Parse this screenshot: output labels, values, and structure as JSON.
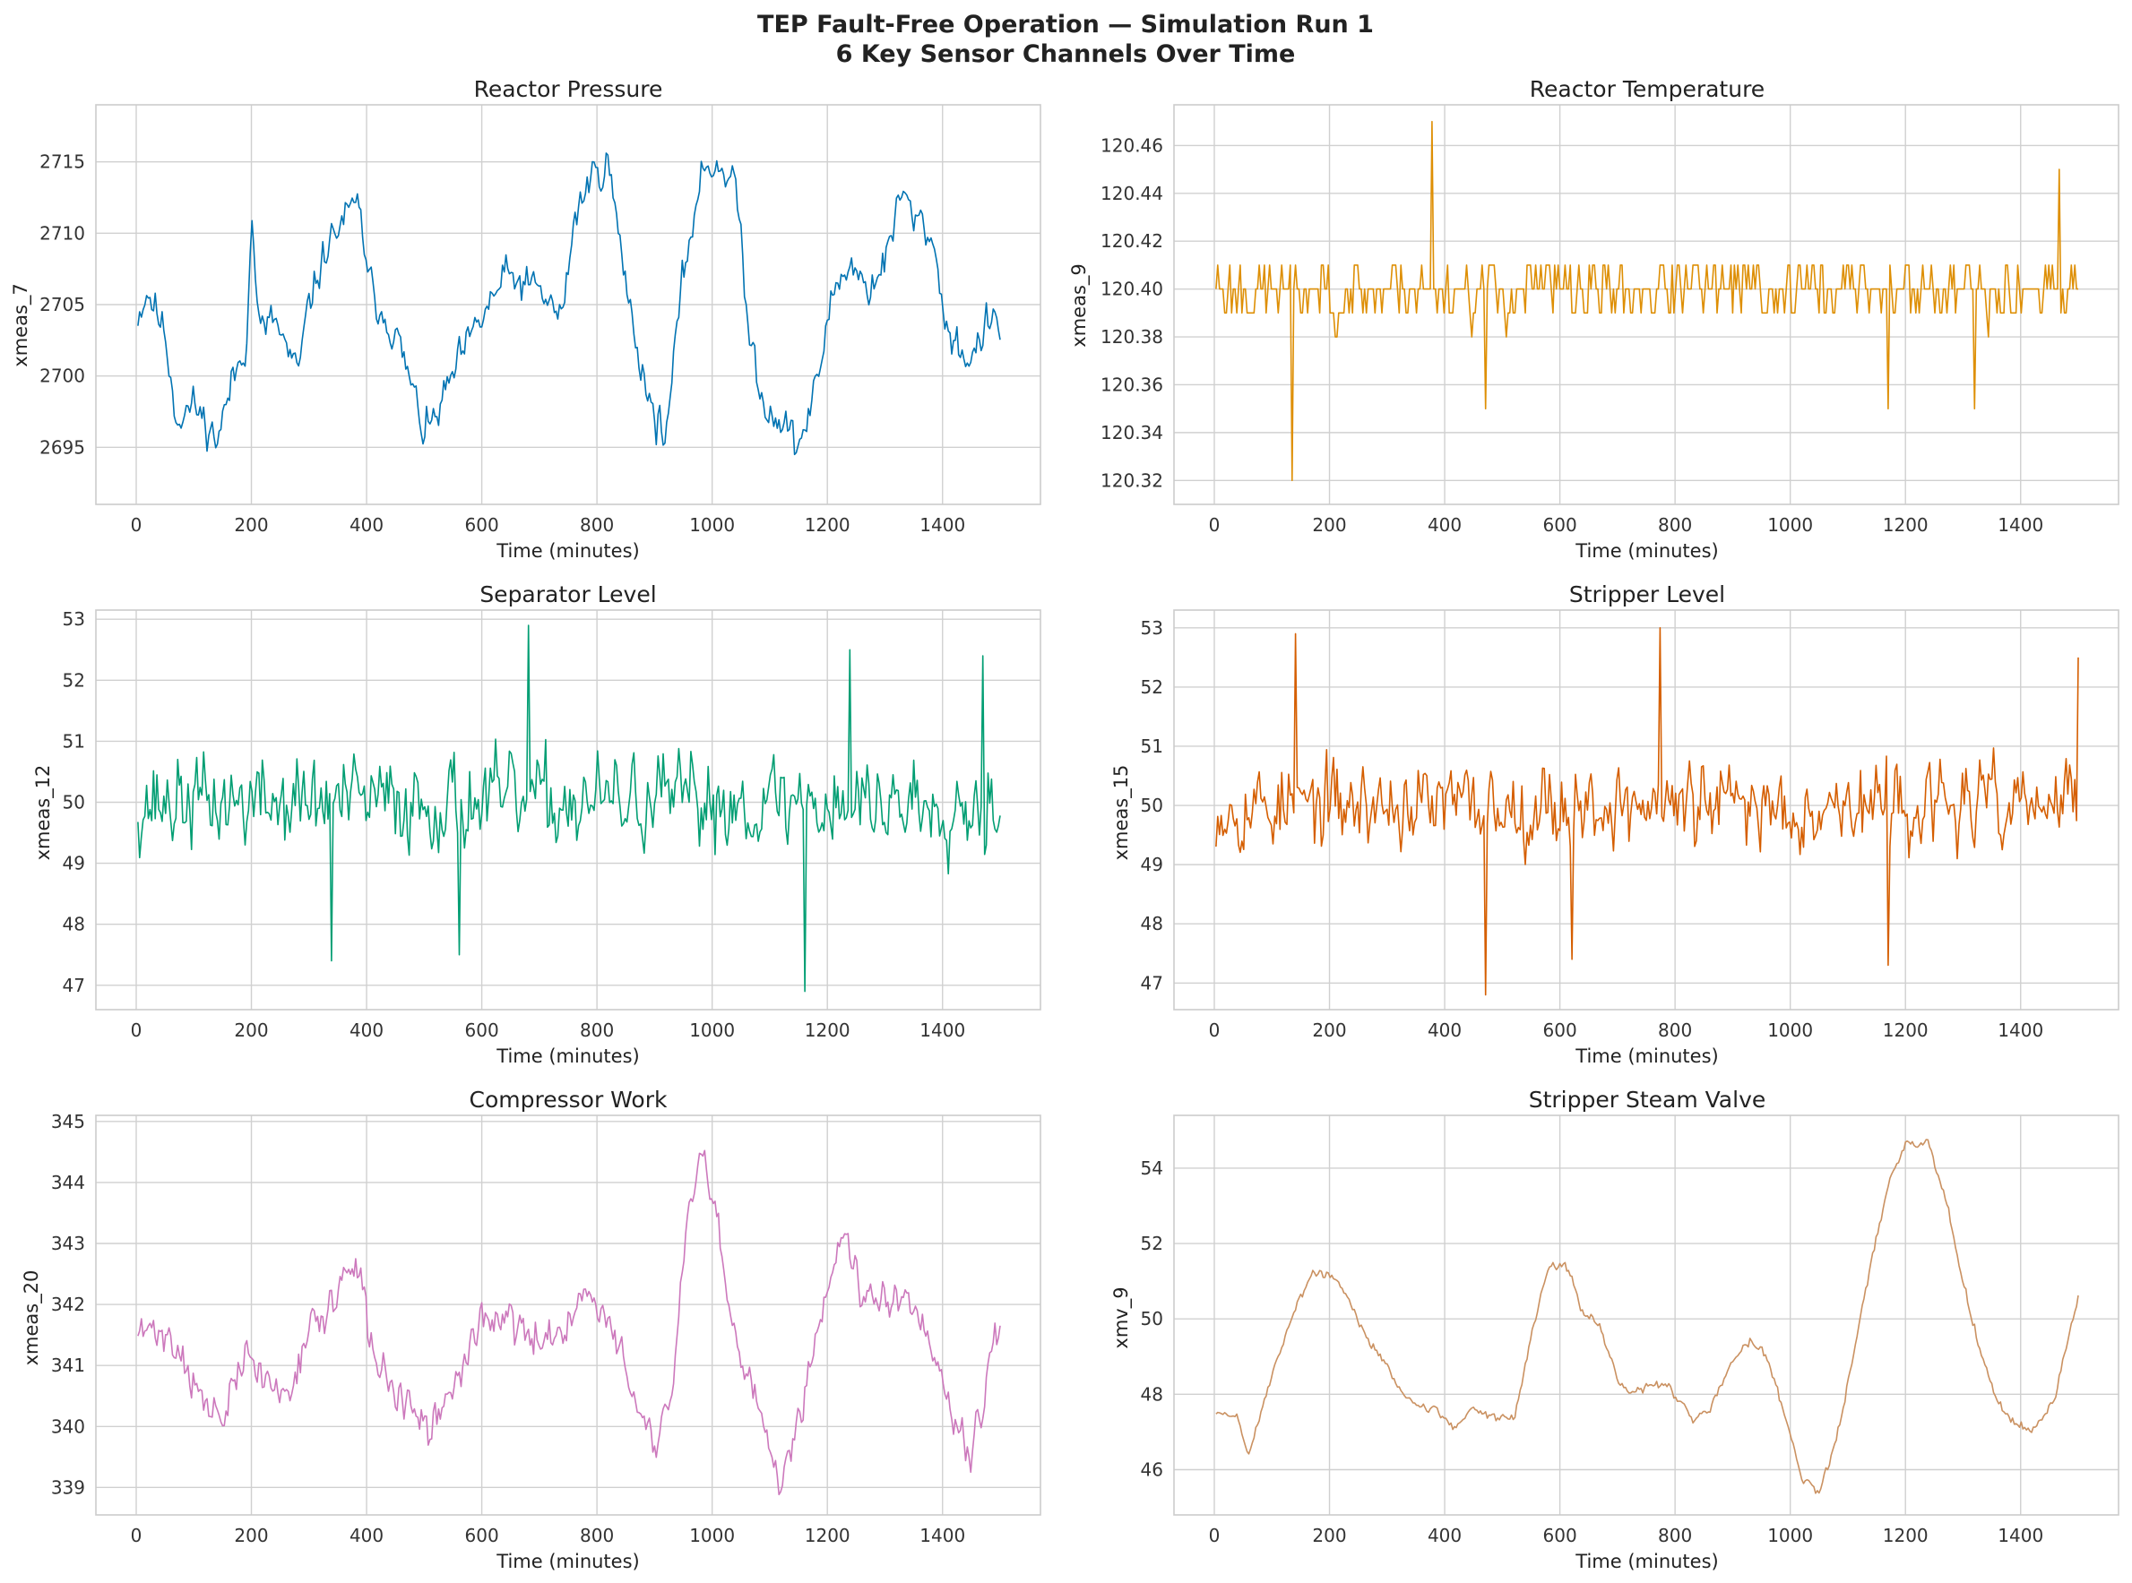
{
  "figure": {
    "title_line1": "TEP Fault-Free Operation — Simulation Run 1",
    "title_line2": "6 Key Sensor Channels Over Time"
  },
  "chart_data": [
    {
      "type": "line",
      "title": "Reactor Pressure",
      "xlabel": "Time (minutes)",
      "ylabel": "xmeas_7",
      "color": "#0173b2",
      "xlim": [
        -70,
        1570
      ],
      "ylim": [
        2691,
        2719
      ],
      "xticks": [
        0,
        200,
        400,
        600,
        800,
        1000,
        1200,
        1400
      ],
      "yticks": [
        2695,
        2700,
        2705,
        2710,
        2715
      ],
      "x_start": 3,
      "x_end": 1500,
      "noise": 1.6,
      "seed": 11,
      "anchors": [
        [
          0,
          2704
        ],
        [
          20,
          2706
        ],
        [
          50,
          2703
        ],
        [
          70,
          2697
        ],
        [
          100,
          2698
        ],
        [
          140,
          2695.5
        ],
        [
          170,
          2700
        ],
        [
          190,
          2702
        ],
        [
          200,
          2711
        ],
        [
          215,
          2703
        ],
        [
          240,
          2704
        ],
        [
          280,
          2700
        ],
        [
          300,
          2705
        ],
        [
          330,
          2709
        ],
        [
          360,
          2711
        ],
        [
          390,
          2712
        ],
        [
          400,
          2707
        ],
        [
          420,
          2705
        ],
        [
          450,
          2703
        ],
        [
          480,
          2699
        ],
        [
          500,
          2696
        ],
        [
          520,
          2697
        ],
        [
          560,
          2701
        ],
        [
          600,
          2704
        ],
        [
          640,
          2707
        ],
        [
          700,
          2706
        ],
        [
          740,
          2704
        ],
        [
          760,
          2711
        ],
        [
          790,
          2714
        ],
        [
          820,
          2715
        ],
        [
          840,
          2709
        ],
        [
          870,
          2702
        ],
        [
          900,
          2697
        ],
        [
          920,
          2696
        ],
        [
          950,
          2707
        ],
        [
          980,
          2714
        ],
        [
          1000,
          2715
        ],
        [
          1040,
          2714
        ],
        [
          1060,
          2704
        ],
        [
          1090,
          2698
        ],
        [
          1120,
          2697
        ],
        [
          1150,
          2695
        ],
        [
          1180,
          2699
        ],
        [
          1210,
          2706
        ],
        [
          1240,
          2708
        ],
        [
          1270,
          2706
        ],
        [
          1300,
          2708
        ],
        [
          1330,
          2713
        ],
        [
          1350,
          2711
        ],
        [
          1380,
          2710
        ],
        [
          1410,
          2703
        ],
        [
          1450,
          2701
        ],
        [
          1480,
          2704
        ],
        [
          1500,
          2703
        ]
      ]
    },
    {
      "type": "line",
      "title": "Reactor Temperature",
      "xlabel": "Time (minutes)",
      "ylabel": "xmeas_9",
      "color": "#de8f05",
      "xlim": [
        -70,
        1570
      ],
      "ylim": [
        120.31,
        120.477
      ],
      "xticks": [
        0,
        200,
        400,
        600,
        800,
        1000,
        1200,
        1400
      ],
      "yticks": [
        120.32,
        120.34,
        120.36,
        120.38,
        120.4,
        120.42,
        120.44,
        120.46
      ],
      "x_start": 3,
      "x_end": 1500,
      "quantize": 0.01,
      "noise": 0.016,
      "seed": 23,
      "anchors": [
        [
          0,
          120.4
        ],
        [
          1500,
          120.4
        ]
      ],
      "spikes": [
        [
          136,
          120.32
        ],
        [
          378,
          120.47
        ],
        [
          1466,
          120.45
        ],
        [
          1320,
          120.35
        ],
        [
          1170,
          120.35
        ],
        [
          470,
          120.35
        ]
      ]
    },
    {
      "type": "line",
      "title": "Separator Level",
      "xlabel": "Time (minutes)",
      "ylabel": "xmeas_12",
      "color": "#029e73",
      "xlim": [
        -70,
        1570
      ],
      "ylim": [
        46.6,
        53.15
      ],
      "xticks": [
        0,
        200,
        400,
        600,
        800,
        1000,
        1200,
        1400
      ],
      "yticks": [
        47,
        48,
        49,
        50,
        51,
        52,
        53
      ],
      "x_start": 3,
      "x_end": 1500,
      "noise": 0.9,
      "seed": 37,
      "anchors": [
        [
          0,
          50
        ],
        [
          1500,
          50
        ]
      ],
      "spikes": [
        [
          680,
          52.9
        ],
        [
          1160,
          46.9
        ],
        [
          340,
          47.4
        ],
        [
          560,
          47.5
        ],
        [
          1240,
          52.5
        ],
        [
          1470,
          52.4
        ]
      ]
    },
    {
      "type": "line",
      "title": "Stripper Level",
      "xlabel": "Time (minutes)",
      "ylabel": "xmeas_15",
      "color": "#d55e00",
      "xlim": [
        -70,
        1570
      ],
      "ylim": [
        46.55,
        53.3
      ],
      "xticks": [
        0,
        200,
        400,
        600,
        800,
        1000,
        1200,
        1400
      ],
      "yticks": [
        47,
        48,
        49,
        50,
        51,
        52,
        53
      ],
      "x_start": 3,
      "x_end": 1500,
      "noise": 0.85,
      "seed": 53,
      "anchors": [
        [
          0,
          50
        ],
        [
          1500,
          50
        ]
      ],
      "spikes": [
        [
          470,
          46.8
        ],
        [
          775,
          53
        ],
        [
          140,
          52.9
        ],
        [
          1170,
          47.3
        ],
        [
          620,
          47.4
        ],
        [
          1500,
          52.5
        ]
      ]
    },
    {
      "type": "line",
      "title": "Compressor Work",
      "xlabel": "Time (minutes)",
      "ylabel": "xmeas_20",
      "color": "#cc78bc",
      "xlim": [
        -70,
        1570
      ],
      "ylim": [
        338.55,
        345.1
      ],
      "xticks": [
        0,
        200,
        400,
        600,
        800,
        1000,
        1200,
        1400
      ],
      "yticks": [
        339,
        340,
        341,
        342,
        343,
        344,
        345
      ],
      "x_start": 3,
      "x_end": 1500,
      "noise": 0.38,
      "seed": 71,
      "anchors": [
        [
          0,
          341.5
        ],
        [
          40,
          341.6
        ],
        [
          80,
          341.2
        ],
        [
          120,
          340.3
        ],
        [
          150,
          340.1
        ],
        [
          190,
          341.2
        ],
        [
          220,
          340.8
        ],
        [
          260,
          340.5
        ],
        [
          300,
          341.6
        ],
        [
          330,
          341.8
        ],
        [
          360,
          342.5
        ],
        [
          390,
          342.4
        ],
        [
          410,
          341.2
        ],
        [
          450,
          340.6
        ],
        [
          500,
          339.9
        ],
        [
          530,
          340.2
        ],
        [
          570,
          341.1
        ],
        [
          600,
          341.8
        ],
        [
          650,
          341.7
        ],
        [
          700,
          341.3
        ],
        [
          750,
          341.8
        ],
        [
          790,
          342.2
        ],
        [
          820,
          341.7
        ],
        [
          860,
          340.6
        ],
        [
          900,
          339.7
        ],
        [
          930,
          340.5
        ],
        [
          960,
          343.5
        ],
        [
          980,
          344.4
        ],
        [
          1000,
          343.8
        ],
        [
          1030,
          341.8
        ],
        [
          1060,
          340.8
        ],
        [
          1100,
          339.6
        ],
        [
          1120,
          339.1
        ],
        [
          1150,
          340.2
        ],
        [
          1180,
          341.4
        ],
        [
          1200,
          342.4
        ],
        [
          1230,
          343.2
        ],
        [
          1260,
          342.3
        ],
        [
          1300,
          342.1
        ],
        [
          1340,
          342.2
        ],
        [
          1380,
          341.4
        ],
        [
          1420,
          340.2
        ],
        [
          1450,
          339.6
        ],
        [
          1480,
          341
        ],
        [
          1500,
          341.6
        ]
      ]
    },
    {
      "type": "line",
      "title": "Stripper Steam Valve",
      "xlabel": "Time (minutes)",
      "ylabel": "xmv_9",
      "color": "#ca9161",
      "xlim": [
        -70,
        1570
      ],
      "ylim": [
        44.8,
        55.4
      ],
      "xticks": [
        0,
        200,
        400,
        600,
        800,
        1000,
        1200,
        1400
      ],
      "yticks": [
        46,
        48,
        50,
        52,
        54
      ],
      "x_start": 3,
      "x_end": 1500,
      "noise": 0.15,
      "seed": 89,
      "anchors": [
        [
          0,
          47.5
        ],
        [
          40,
          47.4
        ],
        [
          60,
          46.4
        ],
        [
          100,
          48.5
        ],
        [
          140,
          50.3
        ],
        [
          170,
          51.2
        ],
        [
          200,
          51.2
        ],
        [
          230,
          50.6
        ],
        [
          260,
          49.6
        ],
        [
          300,
          48.8
        ],
        [
          330,
          47.9
        ],
        [
          380,
          47.6
        ],
        [
          420,
          47.1
        ],
        [
          450,
          47.7
        ],
        [
          480,
          47.4
        ],
        [
          520,
          47.3
        ],
        [
          550,
          49.5
        ],
        [
          580,
          51.5
        ],
        [
          610,
          51.4
        ],
        [
          640,
          50.2
        ],
        [
          670,
          49.8
        ],
        [
          700,
          48.3
        ],
        [
          730,
          48
        ],
        [
          760,
          48.3
        ],
        [
          790,
          48.2
        ],
        [
          830,
          47.3
        ],
        [
          860,
          47.6
        ],
        [
          890,
          48.6
        ],
        [
          930,
          49.5
        ],
        [
          960,
          49
        ],
        [
          990,
          47.5
        ],
        [
          1020,
          45.8
        ],
        [
          1050,
          45.4
        ],
        [
          1080,
          46.8
        ],
        [
          1110,
          49
        ],
        [
          1140,
          51.5
        ],
        [
          1170,
          53.5
        ],
        [
          1200,
          54.7
        ],
        [
          1240,
          54.6
        ],
        [
          1270,
          53.2
        ],
        [
          1300,
          51
        ],
        [
          1330,
          49.2
        ],
        [
          1360,
          47.8
        ],
        [
          1390,
          47.2
        ],
        [
          1420,
          47
        ],
        [
          1440,
          47.5
        ],
        [
          1460,
          47.9
        ],
        [
          1480,
          49.3
        ],
        [
          1500,
          50.6
        ]
      ]
    }
  ]
}
